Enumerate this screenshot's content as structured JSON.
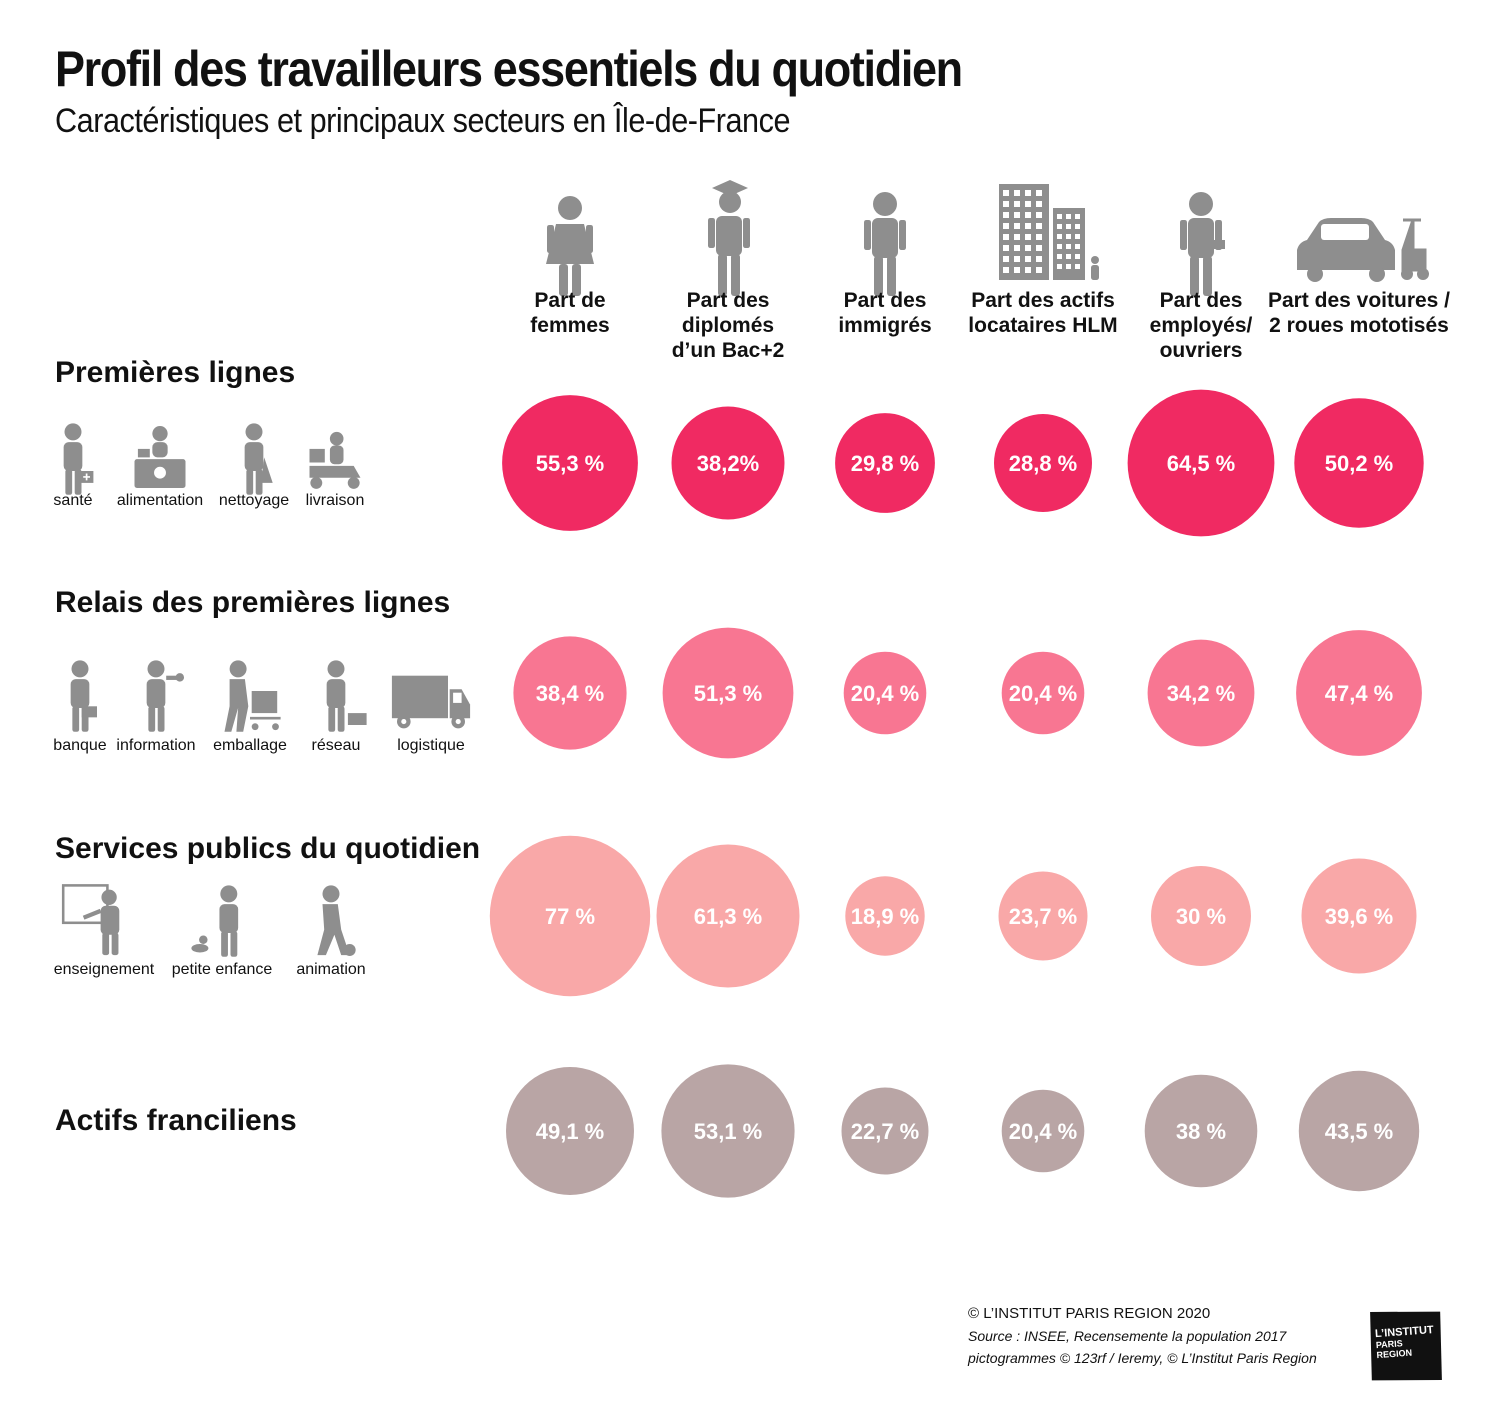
{
  "title": "Profil des travailleurs essentiels du quotidien",
  "subtitle": "Caractéristiques et principaux secteurs  en Île-de-France",
  "colors": {
    "premieres": "#f02a62",
    "relais": "#f87692",
    "services": "#f9a8a8",
    "actifs": "#b9a5a5",
    "icon": "#8e8e8e",
    "text": "#111111"
  },
  "chart_data": {
    "type": "bubble",
    "title": "Profil des travailleurs essentiels du quotidien",
    "subtitle": "Caractéristiques et principaux secteurs  en Île-de-France",
    "categories": [
      {
        "lines": [
          "Part de",
          "femmes"
        ],
        "icon": "woman-icon"
      },
      {
        "lines": [
          "Part des",
          "diplomés",
          "d’un Bac+2"
        ],
        "icon": "graduate-icon"
      },
      {
        "lines": [
          "Part des",
          "immigrés"
        ],
        "icon": "man-icon"
      },
      {
        "lines": [
          "Part des actifs",
          "locataires HLM"
        ],
        "icon": "buildings-icon"
      },
      {
        "lines": [
          "Part des",
          "employés/",
          "ouvriers"
        ],
        "icon": "worker-icon"
      },
      {
        "lines": [
          "Part des voitures /",
          "2 roues mototisés"
        ],
        "icon": "car-scooter-icon"
      }
    ],
    "series": [
      {
        "name": "Premières lignes",
        "color": "#f02a62",
        "values": [
          55.3,
          38.2,
          29.8,
          28.8,
          64.5,
          50.2
        ],
        "labels": [
          "55,3 %",
          "38,2%",
          "29,8 %",
          "28,8 %",
          "64,5 %",
          "50,2 %"
        ],
        "sectors": [
          {
            "label": "santé",
            "icon": "doctor-icon"
          },
          {
            "label": "alimentation",
            "icon": "cashier-icon"
          },
          {
            "label": "nettoyage",
            "icon": "cleaner-icon"
          },
          {
            "label": "livraison",
            "icon": "delivery-scooter-icon"
          }
        ]
      },
      {
        "name": "Relais des premières lignes",
        "color": "#f87692",
        "values": [
          38.4,
          51.3,
          20.4,
          20.4,
          34.2,
          47.4
        ],
        "labels": [
          "38,4 %",
          "51,3 %",
          "20,4 %",
          "20,4 %",
          "34,2 %",
          "47,4 %"
        ],
        "sectors": [
          {
            "label": "banque",
            "icon": "banker-icon"
          },
          {
            "label": "information",
            "icon": "journalist-icon"
          },
          {
            "label": "emballage",
            "icon": "packer-icon"
          },
          {
            "label": "réseau",
            "icon": "technician-icon"
          },
          {
            "label": "logistique",
            "icon": "truck-icon"
          }
        ]
      },
      {
        "name": "Services publics du quotidien",
        "color": "#f9a8a8",
        "values": [
          77,
          61.3,
          18.9,
          23.7,
          30,
          39.6
        ],
        "labels": [
          "77 %",
          "61,3 %",
          "18,9 %",
          "23,7 %",
          "30 %",
          "39,6 %"
        ],
        "sectors": [
          {
            "label": "enseignement",
            "icon": "teacher-icon"
          },
          {
            "label": "petite enfance",
            "icon": "childcare-icon"
          },
          {
            "label": "animation",
            "icon": "animator-icon"
          }
        ]
      },
      {
        "name": "Actifs franciliens",
        "color": "#b9a5a5",
        "values": [
          49.1,
          53.1,
          22.7,
          20.4,
          38,
          43.5
        ],
        "labels": [
          "49,1 %",
          "53,1 %",
          "22,7 %",
          "20,4 %",
          "38 %",
          "43,5 %"
        ],
        "sectors": []
      }
    ]
  },
  "footer": {
    "copyright": "© L’INSTITUT PARIS REGION 2020",
    "source": "Source : INSEE, Recensemente la population 2017",
    "pictos": "pictogrammes © 123rf / Ieremy, © L’Institut Paris Region"
  },
  "logo": {
    "line1": "L’INSTITUT",
    "line2": "PARIS",
    "line3": "REGION"
  }
}
